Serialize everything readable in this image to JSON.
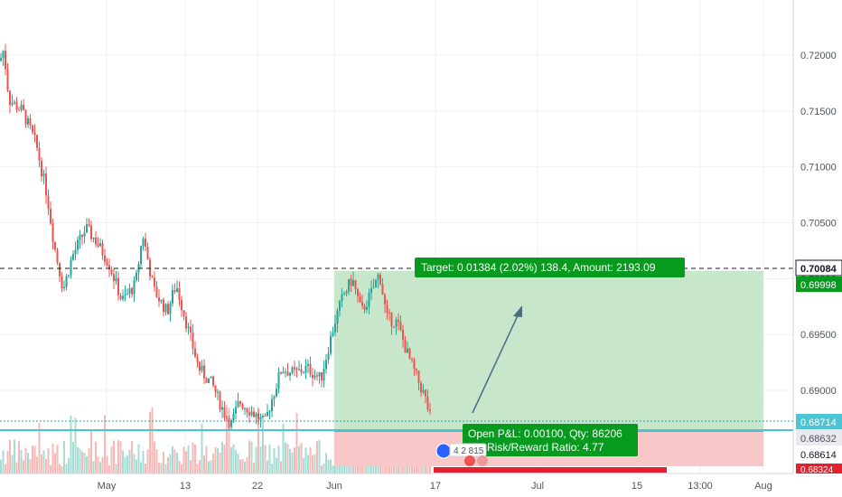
{
  "colors": {
    "up": "#26a69a",
    "down": "#ef5350",
    "target_zone": "#c8e6c9",
    "stop_zone": "#f8c7c7",
    "label_green": "#089a1f",
    "label_red": "#e5202e",
    "last_price_bg": "#4dc4d4",
    "grid": "#eef0f3",
    "axis_bg": "#ffffff"
  },
  "chart_data": {
    "type": "candlestick",
    "instrument_note": "",
    "ylim": [
      0.6835,
      0.724
    ],
    "y_ticks": [
      "0.72000",
      "0.71500",
      "0.71000",
      "0.70500",
      "0.70000",
      "0.69500",
      "0.69000"
    ],
    "x_ticks": [
      "May",
      "13",
      "22",
      "Jun",
      "17",
      "Jul",
      "15",
      "13:00",
      "Aug"
    ],
    "horizontal_line": {
      "price": 0.70084,
      "label": "0.70084",
      "style": "dashed"
    },
    "target_label": "0.69998",
    "current_price_label": "0.68714",
    "entry_label": "0.68632",
    "stop_label": "0.68614",
    "cut_label": "0.68324",
    "candle_keypoints": [
      [
        0,
        0.7195
      ],
      [
        4,
        0.7205
      ],
      [
        10,
        0.716
      ],
      [
        25,
        0.715
      ],
      [
        40,
        0.712
      ],
      [
        52,
        0.7075
      ],
      [
        60,
        0.703
      ],
      [
        70,
        0.699
      ],
      [
        80,
        0.702
      ],
      [
        95,
        0.7045
      ],
      [
        105,
        0.7035
      ],
      [
        120,
        0.7015
      ],
      [
        135,
        0.698
      ],
      [
        150,
        0.6995
      ],
      [
        158,
        0.704
      ],
      [
        170,
        0.699
      ],
      [
        185,
        0.697
      ],
      [
        195,
        0.6995
      ],
      [
        208,
        0.6955
      ],
      [
        220,
        0.692
      ],
      [
        235,
        0.6905
      ],
      [
        248,
        0.688
      ],
      [
        256,
        0.687
      ],
      [
        265,
        0.689
      ],
      [
        280,
        0.688
      ],
      [
        293,
        0.687
      ],
      [
        300,
        0.689
      ],
      [
        312,
        0.692
      ],
      [
        325,
        0.6915
      ],
      [
        340,
        0.692
      ],
      [
        355,
        0.691
      ],
      [
        370,
        0.696
      ],
      [
        380,
        0.6985
      ],
      [
        390,
        0.7
      ],
      [
        400,
        0.697
      ],
      [
        410,
        0.6985
      ],
      [
        420,
        0.7005
      ],
      [
        428,
        0.6965
      ],
      [
        440,
        0.696
      ],
      [
        452,
        0.693
      ],
      [
        462,
        0.691
      ],
      [
        470,
        0.6895
      ],
      [
        478,
        0.687
      ]
    ],
    "volume_present": true
  },
  "position_tool": {
    "target_text": "Target: 0.01384 (2.02%) 138.4, Amount: 2193.09",
    "pnl_text": "Open P&L: 0.00100, Qty: 86206",
    "risk_text": "Risk/Reward Ratio: 4.77"
  },
  "badge": {
    "text": "4 2 815"
  }
}
